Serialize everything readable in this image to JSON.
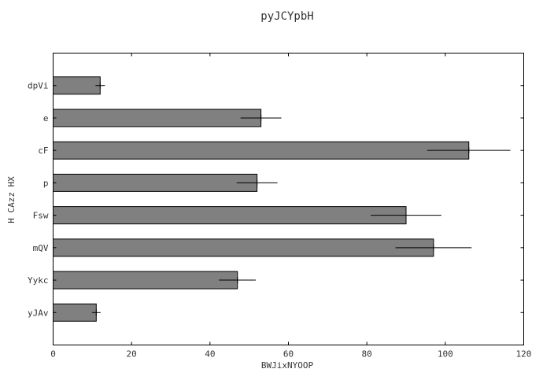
{
  "chart_data": {
    "type": "bar",
    "orientation": "horizontal",
    "title": "pyJCYpbH",
    "xlabel": "BWJixNYOOP",
    "ylabel": "H CAzz HX",
    "categories": [
      "dpVi",
      "e",
      "cF",
      "p",
      "Fsw",
      "mQV",
      "Yykc",
      "yJAv"
    ],
    "values": [
      12,
      53,
      106,
      52,
      90,
      97,
      47,
      11
    ],
    "errors": [
      1.2,
      5.2,
      10.6,
      5.2,
      9.0,
      9.7,
      4.7,
      1.1
    ],
    "xlim": [
      0,
      120
    ],
    "xticks": [
      0,
      20,
      40,
      60,
      80,
      100,
      120
    ],
    "grid": false,
    "legend": "none",
    "colors": {
      "bar": "#808080",
      "edge": "#000000",
      "error": "#000000",
      "axis": "#000000",
      "text": "#333333"
    }
  }
}
